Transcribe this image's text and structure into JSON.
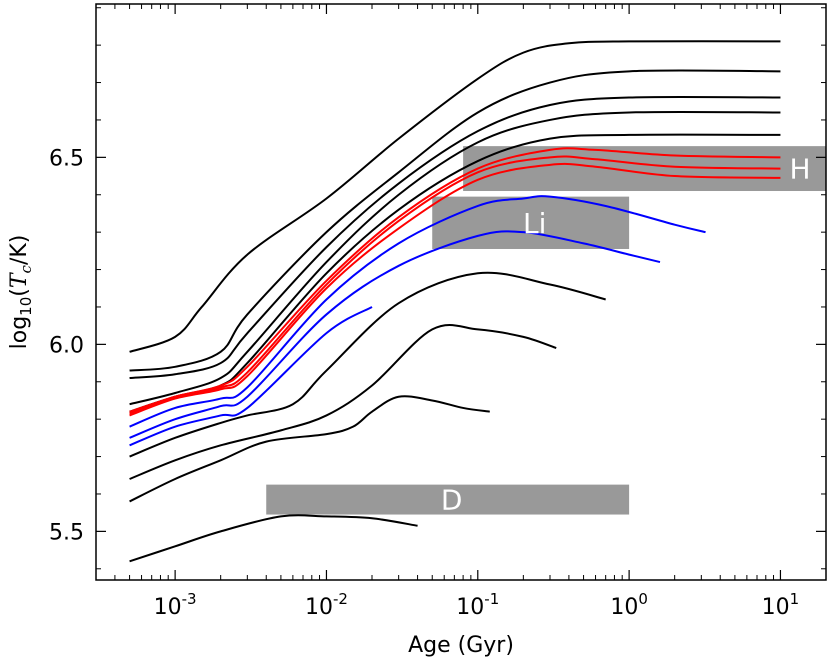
{
  "chart_data": {
    "type": "line",
    "xscale": "log",
    "xlim": [
      0.0003,
      20
    ],
    "ylim": [
      5.37,
      6.91
    ],
    "xlabel": "Age (Gyr)",
    "ylabel": "log10(Tc/K)",
    "ylabel_parts": {
      "prefix": "log",
      "sub": "10",
      "open": "(",
      "var": "T",
      "var_sub": "c",
      "unit": "/K)"
    },
    "x_ticks": [
      {
        "value": 0.001,
        "base": "10",
        "exp": "-3"
      },
      {
        "value": 0.01,
        "base": "10",
        "exp": "-2"
      },
      {
        "value": 0.1,
        "base": "10",
        "exp": "-1"
      },
      {
        "value": 1,
        "base": "10",
        "exp": "0"
      },
      {
        "value": 10,
        "base": "10",
        "exp": "1"
      }
    ],
    "y_ticks": [
      {
        "value": 5.5,
        "label": "5.5"
      },
      {
        "value": 6.0,
        "label": "6.0"
      },
      {
        "value": 6.5,
        "label": "6.5"
      }
    ],
    "colors": {
      "black": "#000000",
      "red": "#ff0000",
      "blue": "#0000ff",
      "band": "#999999"
    },
    "bands": [
      {
        "label": "H",
        "x": [
          0.08,
          20
        ],
        "y": [
          6.41,
          6.53
        ]
      },
      {
        "label": "Li",
        "x": [
          0.05,
          1.0
        ],
        "y": [
          6.255,
          6.395
        ]
      },
      {
        "label": "D",
        "x": [
          0.004,
          1.0
        ],
        "y": [
          5.545,
          5.625
        ]
      }
    ],
    "series": [
      {
        "name": "track-1",
        "color": "black",
        "points": [
          [
            0.0005,
            5.98
          ],
          [
            0.001,
            6.02
          ],
          [
            0.0015,
            6.1
          ],
          [
            0.003,
            6.24
          ],
          [
            0.01,
            6.39
          ],
          [
            0.03,
            6.55
          ],
          [
            0.1,
            6.71
          ],
          [
            0.2,
            6.78
          ],
          [
            0.4,
            6.805
          ],
          [
            1,
            6.81
          ],
          [
            10,
            6.81
          ]
        ]
      },
      {
        "name": "track-2",
        "color": "black",
        "points": [
          [
            0.0005,
            5.93
          ],
          [
            0.001,
            5.94
          ],
          [
            0.002,
            5.98
          ],
          [
            0.003,
            6.08
          ],
          [
            0.01,
            6.3
          ],
          [
            0.03,
            6.46
          ],
          [
            0.1,
            6.62
          ],
          [
            0.3,
            6.7
          ],
          [
            1,
            6.73
          ],
          [
            10,
            6.73
          ]
        ]
      },
      {
        "name": "track-3",
        "color": "black",
        "points": [
          [
            0.0005,
            5.91
          ],
          [
            0.001,
            5.92
          ],
          [
            0.002,
            5.95
          ],
          [
            0.003,
            6.03
          ],
          [
            0.01,
            6.26
          ],
          [
            0.03,
            6.43
          ],
          [
            0.1,
            6.57
          ],
          [
            0.3,
            6.64
          ],
          [
            1,
            6.66
          ],
          [
            10,
            6.66
          ]
        ]
      },
      {
        "name": "track-4",
        "color": "black",
        "points": [
          [
            0.0005,
            5.84
          ],
          [
            0.001,
            5.87
          ],
          [
            0.002,
            5.91
          ],
          [
            0.003,
            5.98
          ],
          [
            0.01,
            6.22
          ],
          [
            0.03,
            6.4
          ],
          [
            0.1,
            6.54
          ],
          [
            0.3,
            6.6
          ],
          [
            1,
            6.62
          ],
          [
            10,
            6.62
          ]
        ]
      },
      {
        "name": "track-5",
        "color": "black",
        "points": [
          [
            0.0005,
            5.82
          ],
          [
            0.001,
            5.86
          ],
          [
            0.002,
            5.89
          ],
          [
            0.003,
            5.95
          ],
          [
            0.01,
            6.19
          ],
          [
            0.03,
            6.36
          ],
          [
            0.1,
            6.49
          ],
          [
            0.3,
            6.55
          ],
          [
            1,
            6.56
          ],
          [
            10,
            6.56
          ]
        ]
      },
      {
        "name": "track-6-red",
        "color": "red",
        "points": [
          [
            0.0005,
            5.82
          ],
          [
            0.001,
            5.86
          ],
          [
            0.002,
            5.89
          ],
          [
            0.003,
            5.94
          ],
          [
            0.01,
            6.17
          ],
          [
            0.03,
            6.34
          ],
          [
            0.1,
            6.47
          ],
          [
            0.3,
            6.52
          ],
          [
            0.6,
            6.52
          ],
          [
            2,
            6.505
          ],
          [
            10,
            6.5
          ]
        ]
      },
      {
        "name": "track-7-red",
        "color": "red",
        "points": [
          [
            0.0005,
            5.815
          ],
          [
            0.001,
            5.86
          ],
          [
            0.002,
            5.885
          ],
          [
            0.003,
            5.925
          ],
          [
            0.01,
            6.16
          ],
          [
            0.03,
            6.33
          ],
          [
            0.1,
            6.46
          ],
          [
            0.3,
            6.5
          ],
          [
            0.6,
            6.495
          ],
          [
            2,
            6.475
          ],
          [
            10,
            6.47
          ]
        ]
      },
      {
        "name": "track-8-red",
        "color": "red",
        "points": [
          [
            0.0005,
            5.81
          ],
          [
            0.001,
            5.855
          ],
          [
            0.002,
            5.88
          ],
          [
            0.003,
            5.915
          ],
          [
            0.01,
            6.15
          ],
          [
            0.03,
            6.31
          ],
          [
            0.1,
            6.44
          ],
          [
            0.3,
            6.48
          ],
          [
            0.6,
            6.475
          ],
          [
            2,
            6.45
          ],
          [
            10,
            6.445
          ]
        ]
      },
      {
        "name": "track-9-blue",
        "color": "blue",
        "points": [
          [
            0.0005,
            5.78
          ],
          [
            0.001,
            5.83
          ],
          [
            0.002,
            5.855
          ],
          [
            0.003,
            5.885
          ],
          [
            0.01,
            6.12
          ],
          [
            0.03,
            6.27
          ],
          [
            0.1,
            6.37
          ],
          [
            0.2,
            6.39
          ],
          [
            0.3,
            6.395
          ],
          [
            0.7,
            6.37
          ],
          [
            2,
            6.32
          ],
          [
            3.2,
            6.3
          ]
        ]
      },
      {
        "name": "track-10-blue",
        "color": "blue",
        "points": [
          [
            0.0005,
            5.75
          ],
          [
            0.001,
            5.8
          ],
          [
            0.002,
            5.835
          ],
          [
            0.003,
            5.86
          ],
          [
            0.01,
            6.08
          ],
          [
            0.03,
            6.21
          ],
          [
            0.1,
            6.29
          ],
          [
            0.2,
            6.3
          ],
          [
            0.5,
            6.27
          ],
          [
            1,
            6.24
          ],
          [
            1.6,
            6.22
          ]
        ]
      },
      {
        "name": "track-11-blue",
        "color": "blue",
        "points": [
          [
            0.0005,
            5.73
          ],
          [
            0.001,
            5.78
          ],
          [
            0.002,
            5.81
          ],
          [
            0.003,
            5.83
          ],
          [
            0.01,
            6.03
          ],
          [
            0.02,
            6.1
          ]
        ]
      },
      {
        "name": "track-12",
        "color": "black",
        "points": [
          [
            0.0005,
            5.7
          ],
          [
            0.001,
            5.75
          ],
          [
            0.002,
            5.79
          ],
          [
            0.003,
            5.81
          ],
          [
            0.006,
            5.84
          ],
          [
            0.01,
            5.93
          ],
          [
            0.03,
            6.11
          ],
          [
            0.1,
            6.19
          ],
          [
            0.3,
            6.16
          ],
          [
            0.7,
            6.12
          ]
        ]
      },
      {
        "name": "track-13",
        "color": "black",
        "points": [
          [
            0.0005,
            5.64
          ],
          [
            0.001,
            5.69
          ],
          [
            0.002,
            5.73
          ],
          [
            0.005,
            5.77
          ],
          [
            0.01,
            5.81
          ],
          [
            0.02,
            5.89
          ],
          [
            0.05,
            6.04
          ],
          [
            0.1,
            6.04
          ],
          [
            0.2,
            6.02
          ],
          [
            0.33,
            5.99
          ]
        ]
      },
      {
        "name": "track-14",
        "color": "black",
        "points": [
          [
            0.0005,
            5.58
          ],
          [
            0.001,
            5.64
          ],
          [
            0.002,
            5.69
          ],
          [
            0.004,
            5.74
          ],
          [
            0.01,
            5.76
          ],
          [
            0.015,
            5.78
          ],
          [
            0.02,
            5.82
          ],
          [
            0.03,
            5.86
          ],
          [
            0.05,
            5.85
          ],
          [
            0.08,
            5.83
          ],
          [
            0.12,
            5.82
          ]
        ]
      },
      {
        "name": "track-15",
        "color": "black",
        "points": [
          [
            0.0005,
            5.42
          ],
          [
            0.001,
            5.46
          ],
          [
            0.002,
            5.5
          ],
          [
            0.005,
            5.54
          ],
          [
            0.01,
            5.54
          ],
          [
            0.02,
            5.535
          ],
          [
            0.04,
            5.515
          ]
        ]
      }
    ]
  }
}
